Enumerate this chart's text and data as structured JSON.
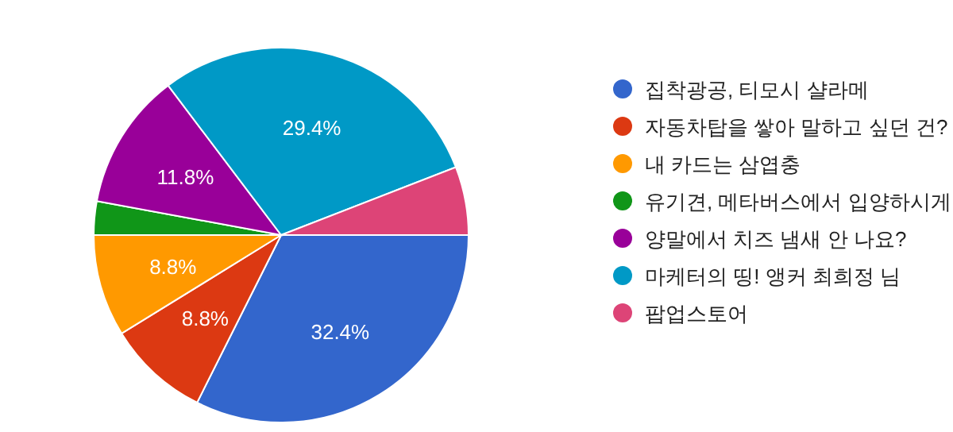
{
  "chart_data": {
    "type": "pie",
    "categories": [
      "집착광공, 티모시 샬라메",
      "자동차탑을 쌓아 말하고 싶던 건?",
      "내 카드는 삼엽충",
      "유기견, 메타버스에서 입양하시게",
      "양말에서 치즈 냄새 안 나요?",
      "마케터의 띵! 앵커 최희정 님",
      "팝업스토어"
    ],
    "values": [
      32.4,
      8.8,
      8.8,
      2.9,
      11.8,
      29.4,
      5.9
    ],
    "colors": [
      "#3366cc",
      "#dc3912",
      "#ff9900",
      "#109618",
      "#990099",
      "#0099c6",
      "#dd4477"
    ],
    "value_labels": [
      "32.4%",
      "8.8%",
      "8.8%",
      null,
      "11.8%",
      "29.4%",
      null
    ],
    "legend": "right"
  }
}
